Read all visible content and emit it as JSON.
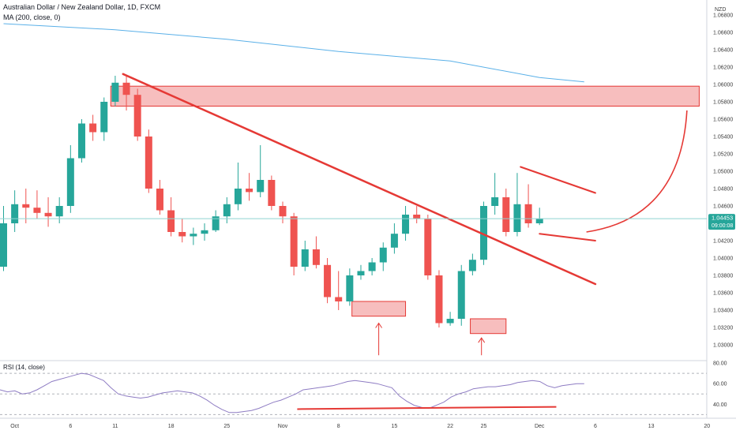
{
  "header": {
    "symbol_line": "Australian Dollar / New Zealand Dollar, 1D, FXCM",
    "ma_label": "MA (200, close, 0)",
    "rsi_label": "RSI (14, close)"
  },
  "currency": "NZD",
  "price_badge": {
    "price": "1.04453",
    "countdown": "09:00:08"
  },
  "colors": {
    "up": "#26a69a",
    "down": "#ef5350",
    "ma": "#5ab0e8",
    "annotation": "#e53935",
    "zone_fill": "#f6b3b3",
    "rsi": "#8e7cc3",
    "current_price_line": "#8fd3d0"
  },
  "chart_data": {
    "type": "candlestick",
    "y_axis": {
      "ticks": [
        "1.06800",
        "1.06600",
        "1.06400",
        "1.06200",
        "1.06000",
        "1.05800",
        "1.05600",
        "1.05400",
        "1.05200",
        "1.05000",
        "1.04800",
        "1.04600",
        "1.04400",
        "1.04200",
        "1.04000",
        "1.03800",
        "1.03600",
        "1.03400",
        "1.03200",
        "1.03000"
      ],
      "range": [
        1.029,
        1.069
      ]
    },
    "x_axis": {
      "tick_labels": [
        "Oct",
        "6",
        "11",
        "18",
        "25",
        "Nov",
        "8",
        "15",
        "22",
        "25",
        "Dec",
        "6",
        "13",
        "20"
      ],
      "tick_bars": [
        1,
        6,
        10,
        15,
        20,
        25,
        30,
        35,
        40,
        43,
        48,
        53,
        58,
        63
      ]
    },
    "candles": [
      {
        "o": 1.039,
        "h": 1.046,
        "l": 1.0385,
        "c": 1.044
      },
      {
        "o": 1.044,
        "h": 1.0478,
        "l": 1.043,
        "c": 1.0462
      },
      {
        "o": 1.0462,
        "h": 1.048,
        "l": 1.044,
        "c": 1.0458
      },
      {
        "o": 1.0458,
        "h": 1.0478,
        "l": 1.0445,
        "c": 1.0452
      },
      {
        "o": 1.0452,
        "h": 1.047,
        "l": 1.0436,
        "c": 1.0448
      },
      {
        "o": 1.0448,
        "h": 1.047,
        "l": 1.044,
        "c": 1.046
      },
      {
        "o": 1.046,
        "h": 1.053,
        "l": 1.0452,
        "c": 1.0515
      },
      {
        "o": 1.0515,
        "h": 1.056,
        "l": 1.051,
        "c": 1.0555
      },
      {
        "o": 1.0555,
        "h": 1.0565,
        "l": 1.0535,
        "c": 1.0545
      },
      {
        "o": 1.0545,
        "h": 1.0585,
        "l": 1.0535,
        "c": 1.058
      },
      {
        "o": 1.058,
        "h": 1.061,
        "l": 1.0575,
        "c": 1.0602
      },
      {
        "o": 1.0602,
        "h": 1.061,
        "l": 1.057,
        "c": 1.0588
      },
      {
        "o": 1.0588,
        "h": 1.0595,
        "l": 1.0535,
        "c": 1.054
      },
      {
        "o": 1.054,
        "h": 1.0548,
        "l": 1.0475,
        "c": 1.048
      },
      {
        "o": 1.048,
        "h": 1.049,
        "l": 1.045,
        "c": 1.0455
      },
      {
        "o": 1.0455,
        "h": 1.047,
        "l": 1.0425,
        "c": 1.043
      },
      {
        "o": 1.043,
        "h": 1.0445,
        "l": 1.0418,
        "c": 1.0425
      },
      {
        "o": 1.0425,
        "h": 1.0435,
        "l": 1.0415,
        "c": 1.0428
      },
      {
        "o": 1.0428,
        "h": 1.044,
        "l": 1.042,
        "c": 1.0432
      },
      {
        "o": 1.0432,
        "h": 1.0455,
        "l": 1.043,
        "c": 1.0448
      },
      {
        "o": 1.0448,
        "h": 1.047,
        "l": 1.044,
        "c": 1.0462
      },
      {
        "o": 1.0462,
        "h": 1.051,
        "l": 1.0455,
        "c": 1.048
      },
      {
        "o": 1.048,
        "h": 1.0498,
        "l": 1.0466,
        "c": 1.0476
      },
      {
        "o": 1.0476,
        "h": 1.053,
        "l": 1.047,
        "c": 1.049
      },
      {
        "o": 1.049,
        "h": 1.0495,
        "l": 1.0455,
        "c": 1.046
      },
      {
        "o": 1.046,
        "h": 1.0465,
        "l": 1.044,
        "c": 1.0448
      },
      {
        "o": 1.0448,
        "h": 1.0452,
        "l": 1.038,
        "c": 1.039
      },
      {
        "o": 1.039,
        "h": 1.042,
        "l": 1.0385,
        "c": 1.041
      },
      {
        "o": 1.041,
        "h": 1.0425,
        "l": 1.0388,
        "c": 1.0392
      },
      {
        "o": 1.0392,
        "h": 1.04,
        "l": 1.0348,
        "c": 1.0355
      },
      {
        "o": 1.0355,
        "h": 1.0385,
        "l": 1.034,
        "c": 1.035
      },
      {
        "o": 1.035,
        "h": 1.0388,
        "l": 1.0345,
        "c": 1.038
      },
      {
        "o": 1.038,
        "h": 1.0392,
        "l": 1.0375,
        "c": 1.0385
      },
      {
        "o": 1.0385,
        "h": 1.04,
        "l": 1.038,
        "c": 1.0395
      },
      {
        "o": 1.0395,
        "h": 1.0418,
        "l": 1.0385,
        "c": 1.0412
      },
      {
        "o": 1.0412,
        "h": 1.044,
        "l": 1.0405,
        "c": 1.0428
      },
      {
        "o": 1.0428,
        "h": 1.046,
        "l": 1.042,
        "c": 1.045
      },
      {
        "o": 1.045,
        "h": 1.046,
        "l": 1.044,
        "c": 1.0445
      },
      {
        "o": 1.0445,
        "h": 1.045,
        "l": 1.0375,
        "c": 1.038
      },
      {
        "o": 1.038,
        "h": 1.0386,
        "l": 1.032,
        "c": 1.0325
      },
      {
        "o": 1.0325,
        "h": 1.0338,
        "l": 1.0322,
        "c": 1.033
      },
      {
        "o": 1.033,
        "h": 1.0392,
        "l": 1.0322,
        "c": 1.0385
      },
      {
        "o": 1.0385,
        "h": 1.0405,
        "l": 1.038,
        "c": 1.0398
      },
      {
        "o": 1.0398,
        "h": 1.0465,
        "l": 1.0392,
        "c": 1.046
      },
      {
        "o": 1.046,
        "h": 1.0498,
        "l": 1.045,
        "c": 1.047
      },
      {
        "o": 1.047,
        "h": 1.048,
        "l": 1.0425,
        "c": 1.043
      },
      {
        "o": 1.043,
        "h": 1.0498,
        "l": 1.0425,
        "c": 1.0462
      },
      {
        "o": 1.0462,
        "h": 1.0485,
        "l": 1.0435,
        "c": 1.044
      },
      {
        "o": 1.044,
        "h": 1.0458,
        "l": 1.0438,
        "c": 1.0445
      }
    ],
    "moving_average": {
      "name": "MA (200, close, 0)",
      "points": [
        [
          0,
          1.067
        ],
        [
          10,
          1.0663
        ],
        [
          20,
          1.0652
        ],
        [
          30,
          1.0638
        ],
        [
          40,
          1.0627
        ],
        [
          48,
          1.0608
        ],
        [
          52,
          1.0603
        ]
      ]
    },
    "annotations": {
      "resistance_zone": {
        "bar_from": 9.6,
        "bar_to": 62.3,
        "y_top": 1.0598,
        "y_bottom": 1.0575
      },
      "support_zone_1": {
        "bar_from": 31.2,
        "bar_to": 36.0,
        "y_top": 1.035,
        "y_bottom": 1.0333
      },
      "support_zone_2": {
        "bar_from": 41.8,
        "bar_to": 45.0,
        "y_top": 1.033,
        "y_bottom": 1.0313
      },
      "downtrend_line": [
        [
          10.7,
          1.0612
        ],
        [
          53.0,
          1.037
        ]
      ],
      "wedge_upper": [
        [
          46.3,
          1.0505
        ],
        [
          53.0,
          1.0475
        ]
      ],
      "wedge_lower": [
        [
          48.0,
          1.0428
        ],
        [
          53.0,
          1.042
        ]
      ],
      "projection_curve": [
        [
          52.2,
          1.043
        ],
        [
          61.2,
          1.057
        ]
      ],
      "arrows": [
        {
          "bar": 33.6,
          "from": 1.0288,
          "to": 1.0325
        },
        {
          "bar": 42.8,
          "from": 1.0288,
          "to": 1.0308
        }
      ]
    },
    "rsi": {
      "label": "RSI (14, close)",
      "ticks": [
        "80.00",
        "60.00",
        "40.00"
      ],
      "range": [
        28,
        80
      ],
      "levels": [
        70,
        50,
        30
      ],
      "values": [
        54,
        52,
        53,
        50,
        51,
        54,
        58,
        62,
        64,
        66,
        68,
        70,
        69,
        66,
        63,
        56,
        50,
        48,
        47,
        46,
        47,
        49,
        51,
        52,
        53,
        52,
        51,
        48,
        44,
        39,
        35,
        32,
        32,
        33,
        34,
        36,
        39,
        42,
        44,
        47,
        50,
        54,
        55,
        56,
        57,
        58,
        60,
        62,
        63,
        62,
        61,
        60,
        58,
        56,
        48,
        43,
        39,
        37,
        36,
        39,
        42,
        47,
        50,
        52,
        55,
        56,
        57,
        57,
        58,
        59,
        61,
        62,
        63,
        62,
        58,
        56,
        58,
        59,
        60,
        60
      ]
    },
    "rsi_trendline": [
      [
        26.3,
        35.3
      ],
      [
        49.5,
        37.5
      ]
    ]
  }
}
